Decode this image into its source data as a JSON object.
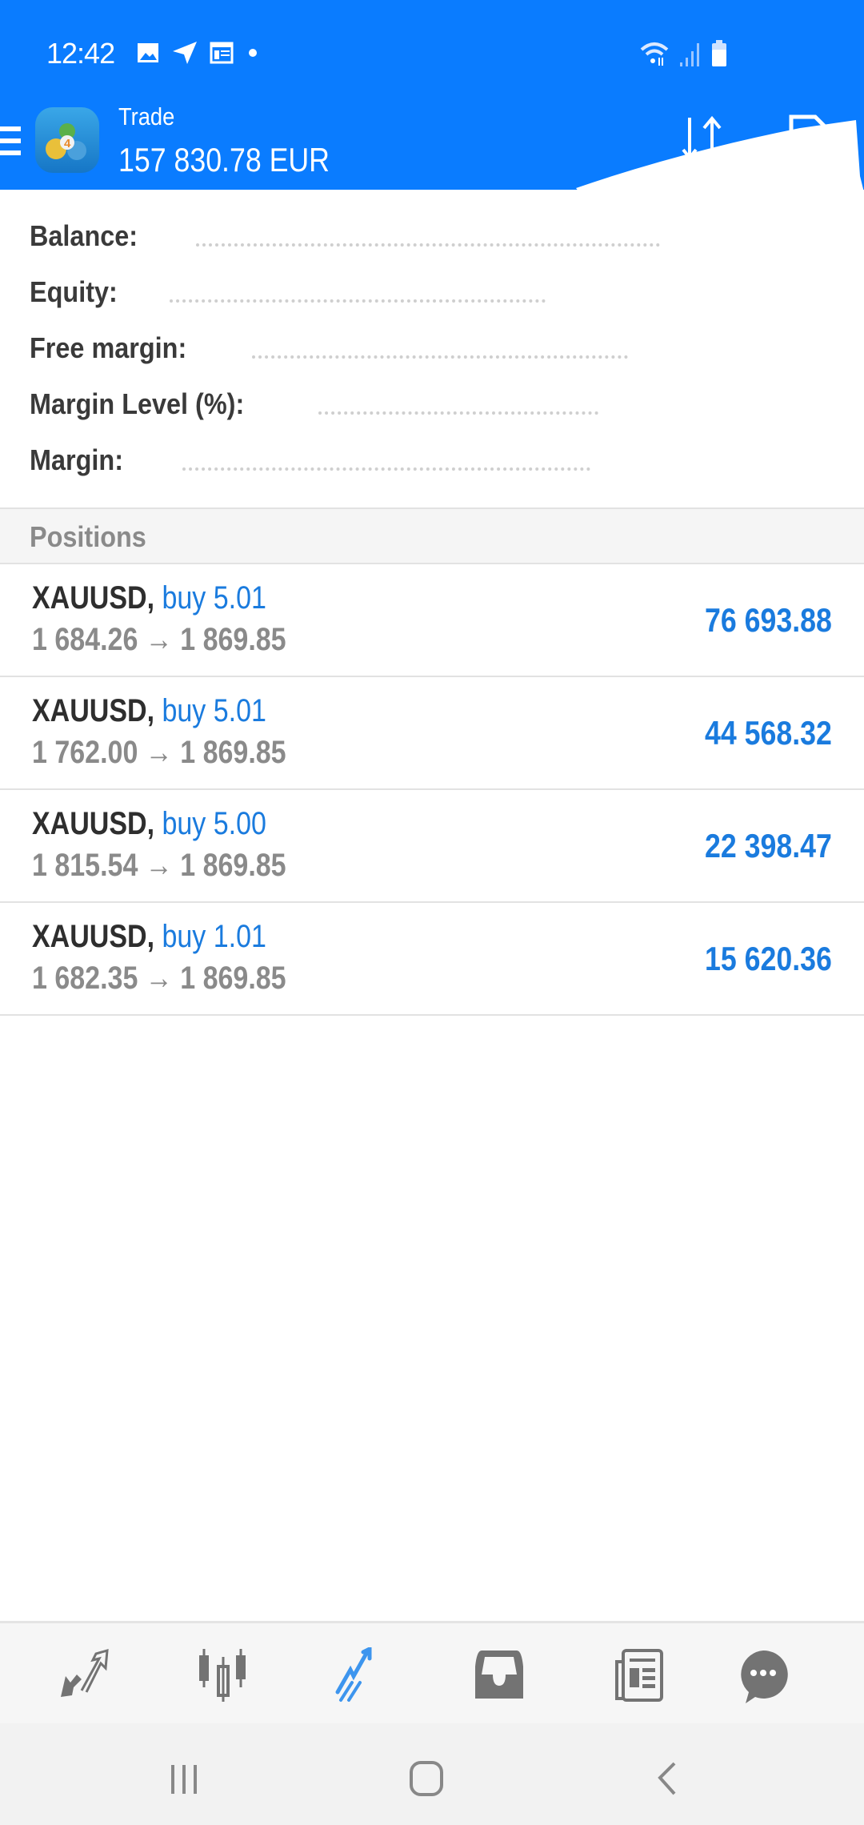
{
  "status_bar": {
    "time": "12:42",
    "icons": [
      "gallery-icon",
      "telegram-icon",
      "calendar-icon",
      "dot-icon"
    ],
    "right_icons": [
      "wifi-icon",
      "signal-icon",
      "battery-icon"
    ]
  },
  "header": {
    "title": "Trade",
    "balance_display": "157 830.78 EUR",
    "actions": [
      "sort-icon",
      "new-order-icon"
    ],
    "color": "#0a7cff"
  },
  "summary": [
    {
      "label": "Balance:"
    },
    {
      "label": "Equity:"
    },
    {
      "label": "Free margin:"
    },
    {
      "label": "Margin Level (%):"
    },
    {
      "label": "Margin:"
    }
  ],
  "positions": {
    "title": "Positions",
    "items": [
      {
        "symbol": "XAUUSD,",
        "side": "buy 5.01",
        "prices": "1 684.26 → 1 869.85",
        "profit": "76 693.88"
      },
      {
        "symbol": "XAUUSD,",
        "side": "buy 5.01",
        "prices": "1 762.00 → 1 869.85",
        "profit": "44 568.32"
      },
      {
        "symbol": "XAUUSD,",
        "side": "buy 5.00",
        "prices": "1 815.54 → 1 869.85",
        "profit": "22 398.47"
      },
      {
        "symbol": "XAUUSD,",
        "side": "buy 1.01",
        "prices": "1 682.35 → 1 869.85",
        "profit": "15 620.36"
      }
    ]
  },
  "bottom_nav": {
    "items": [
      "quotes-icon",
      "chart-icon",
      "trade-icon",
      "mailbox-icon",
      "news-icon",
      "chat-icon"
    ],
    "active": "trade-icon",
    "active_color": "#3d95ee",
    "inactive_color": "#737373"
  },
  "system_nav": [
    "recents-icon",
    "home-icon",
    "back-icon"
  ]
}
